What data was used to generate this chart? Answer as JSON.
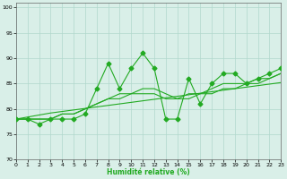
{
  "x": [
    0,
    1,
    2,
    3,
    4,
    5,
    6,
    7,
    8,
    9,
    10,
    11,
    12,
    13,
    14,
    15,
    16,
    17,
    18,
    19,
    20,
    21,
    22,
    23
  ],
  "series_main": [
    78,
    78,
    77,
    78,
    78,
    78,
    79,
    84,
    89,
    84,
    88,
    91,
    88,
    78,
    78,
    86,
    81,
    85,
    87,
    87,
    85,
    86,
    87,
    88
  ],
  "series_smooth1": [
    78,
    78,
    78,
    78,
    79,
    79,
    80,
    81,
    82,
    82,
    83,
    83,
    83,
    82,
    82,
    82,
    83,
    83,
    84,
    84,
    85,
    85,
    86,
    87
  ],
  "series_smooth2": [
    78,
    78,
    78,
    78,
    79,
    79,
    80,
    81,
    82,
    83,
    83,
    84,
    84,
    83,
    82,
    83,
    83,
    84,
    85,
    85,
    85,
    86,
    86,
    87
  ],
  "trend_line": [
    78,
    78.4,
    78.8,
    79.2,
    79.5,
    79.8,
    80.1,
    80.4,
    80.7,
    81.0,
    81.3,
    81.6,
    81.9,
    82.2,
    82.5,
    82.8,
    83.1,
    83.4,
    83.7,
    84.0,
    84.3,
    84.6,
    84.9,
    85.2
  ],
  "bg_color": "#d9efe8",
  "grid_color": "#b0d8cc",
  "line_color": "#22aa22",
  "xlabel": "Humidité relative (%)",
  "xlim": [
    0,
    23
  ],
  "ylim": [
    70,
    101
  ],
  "yticks": [
    70,
    75,
    80,
    85,
    90,
    95,
    100
  ],
  "xticks": [
    0,
    1,
    2,
    3,
    4,
    5,
    6,
    7,
    8,
    9,
    10,
    11,
    12,
    13,
    14,
    15,
    16,
    17,
    18,
    19,
    20,
    21,
    22,
    23
  ]
}
